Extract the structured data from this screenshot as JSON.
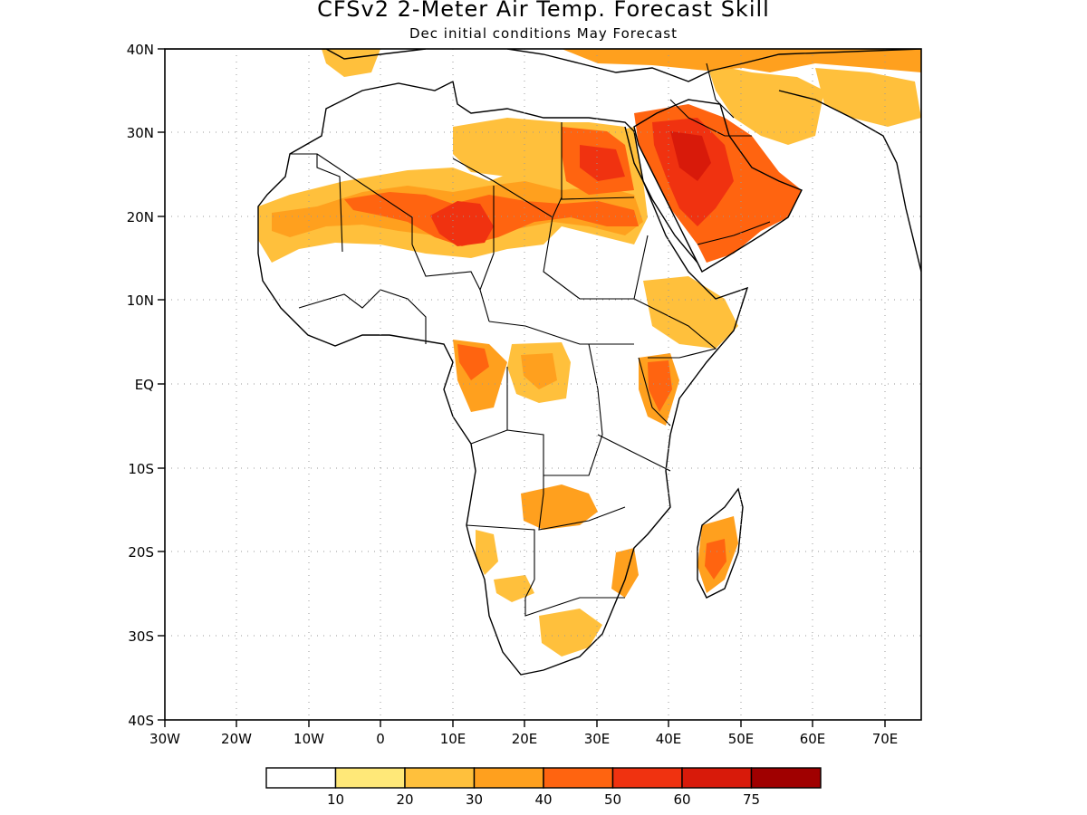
{
  "title": "CFSv2 2-Meter Air Temp. Forecast Skill",
  "subtitle": "Dec initial conditions  May Forecast",
  "axes": {
    "lon_ticks": [
      "30W",
      "20W",
      "10W",
      "0",
      "10E",
      "20E",
      "30E",
      "40E",
      "50E",
      "60E",
      "70E"
    ],
    "lat_ticks": [
      "40N",
      "30N",
      "20N",
      "10N",
      "EQ",
      "10S",
      "20S",
      "30S",
      "40S"
    ]
  },
  "colorbar": {
    "colors": [
      "#ffffff",
      "#ffe878",
      "#ffc03c",
      "#ffa01e",
      "#ff6410",
      "#f03210",
      "#d81a0a",
      "#a00000"
    ],
    "labels": [
      "10",
      "20",
      "30",
      "40",
      "50",
      "60",
      "75"
    ]
  },
  "map_layers": {
    "region": "Africa and Middle East",
    "field": "2-meter air temperature forecast skill",
    "high_skill_areas": [
      "Sahel",
      "Sudan",
      "Arabian Peninsula",
      "northern Sahara",
      "Central Africa",
      "Madagascar"
    ]
  }
}
